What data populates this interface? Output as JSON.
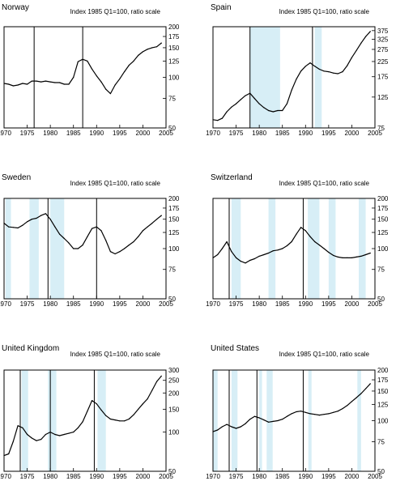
{
  "figure": {
    "shade_color": "#d7eef6",
    "line_color": "#000000"
  },
  "chart_data": [
    {
      "type": "line",
      "title": "Norway",
      "subtitle": "Index 1985 Q1=100, ratio scale",
      "x_ticks": [
        "1970",
        "1975",
        "1980",
        "1985",
        "1990",
        "1995",
        "2000",
        "2005"
      ],
      "xlim": [
        1970,
        2005
      ],
      "y_ticks": [
        50,
        75,
        100,
        125,
        150,
        175,
        200
      ],
      "y_tick_labels": [
        "50",
        "75",
        "100",
        "125",
        "150",
        "175",
        "200"
      ],
      "ylim": [
        50,
        200
      ],
      "y_scale": "log",
      "recessions": [],
      "peak_lines": [
        1976.5,
        1987
      ],
      "series": [
        {
          "x": [
            1970,
            1971,
            1972,
            1973,
            1974,
            1975,
            1976,
            1977,
            1978,
            1979,
            1980,
            1981,
            1982,
            1983,
            1984,
            1985,
            1986,
            1987,
            1988,
            1989,
            1990,
            1991,
            1992,
            1993,
            1994,
            1995,
            1996,
            1997,
            1998,
            1999,
            2000,
            2001,
            2002,
            2003,
            2004
          ],
          "y": [
            92,
            91,
            89,
            90,
            92,
            91,
            95,
            95,
            94,
            95,
            94,
            93,
            93,
            91,
            91,
            100,
            124,
            128,
            125,
            112,
            102,
            94,
            85,
            80,
            90,
            98,
            108,
            118,
            125,
            135,
            142,
            147,
            150,
            152,
            160
          ]
        }
      ]
    },
    {
      "type": "line",
      "title": "Spain",
      "subtitle": "Index 1985 Q1=100, ratio scale",
      "x_ticks": [
        "1970",
        "1975",
        "1980",
        "1985",
        "1990",
        "1995",
        "2000",
        "2005"
      ],
      "xlim": [
        1970,
        2005
      ],
      "y_ticks": [
        75,
        125,
        175,
        225,
        275,
        325,
        375
      ],
      "y_tick_labels": [
        "75",
        "125",
        "175",
        "225",
        "275",
        "325",
        "375"
      ],
      "ylim": [
        75,
        400
      ],
      "y_scale": "log",
      "recessions": [
        [
          1978,
          1984.5
        ],
        [
          1992,
          1993.5
        ]
      ],
      "peak_lines": [
        1978,
        1991.5
      ],
      "series": [
        {
          "x": [
            1970,
            1971,
            1972,
            1973,
            1974,
            1975,
            1976,
            1977,
            1978,
            1979,
            1980,
            1981,
            1982,
            1983,
            1984,
            1985,
            1986,
            1987,
            1988,
            1989,
            1990,
            1991,
            1992,
            1993,
            1994,
            1995,
            1996,
            1997,
            1998,
            1999,
            2000,
            2001,
            2002,
            2003,
            2004
          ],
          "y": [
            86,
            85,
            88,
            98,
            106,
            112,
            120,
            128,
            133,
            122,
            112,
            105,
            100,
            98,
            100,
            100,
            112,
            140,
            168,
            192,
            208,
            220,
            208,
            198,
            192,
            190,
            186,
            184,
            190,
            210,
            240,
            270,
            305,
            340,
            370
          ]
        }
      ]
    },
    {
      "type": "line",
      "title": "Sweden",
      "subtitle": "Index 1985 Q1=100, ratio scale",
      "x_ticks": [
        "1970",
        "1975",
        "1980",
        "1985",
        "1990",
        "1995",
        "2000",
        "2005"
      ],
      "xlim": [
        1970,
        2005
      ],
      "y_ticks": [
        50,
        75,
        100,
        125,
        150,
        175,
        200
      ],
      "y_tick_labels": [
        "50",
        "75",
        "100",
        "125",
        "150",
        "175",
        "200"
      ],
      "ylim": [
        50,
        200
      ],
      "y_scale": "log",
      "recessions": [
        [
          1970.3,
          1971.5
        ],
        [
          1975.5,
          1977.5
        ],
        [
          1980,
          1983
        ]
      ],
      "peak_lines": [
        1979.5,
        1990
      ],
      "series": [
        {
          "x": [
            1970,
            1971,
            1972,
            1973,
            1974,
            1975,
            1976,
            1977,
            1978,
            1979,
            1980,
            1981,
            1982,
            1983,
            1984,
            1985,
            1986,
            1987,
            1988,
            1989,
            1990,
            1991,
            1992,
            1993,
            1994,
            1995,
            1996,
            1997,
            1998,
            1999,
            2000,
            2001,
            2002,
            2003,
            2004
          ],
          "y": [
            142,
            135,
            134,
            133,
            138,
            145,
            150,
            152,
            158,
            162,
            150,
            135,
            122,
            115,
            108,
            100,
            100,
            105,
            118,
            132,
            135,
            128,
            112,
            96,
            93,
            96,
            100,
            105,
            110,
            118,
            128,
            135,
            142,
            150,
            158
          ]
        }
      ]
    },
    {
      "type": "line",
      "title": "Switzerland",
      "subtitle": "Index 1985 Q1=100, ratio scale",
      "x_ticks": [
        "1970",
        "1975",
        "1980",
        "1985",
        "1990",
        "1995",
        "2000",
        "2005"
      ],
      "xlim": [
        1970,
        2005
      ],
      "y_ticks": [
        50,
        75,
        100,
        125,
        150,
        175,
        200
      ],
      "y_tick_labels": [
        "50",
        "75",
        "100",
        "125",
        "150",
        "175",
        "200"
      ],
      "ylim": [
        50,
        200
      ],
      "y_scale": "log",
      "recessions": [
        [
          1974,
          1976
        ],
        [
          1982,
          1983.5
        ],
        [
          1990.5,
          1993
        ],
        [
          1995,
          1996.5
        ],
        [
          2001.5,
          2003
        ]
      ],
      "peak_lines": [
        1973.5,
        1989.5
      ],
      "series": [
        {
          "x": [
            1970,
            1971,
            1972,
            1973,
            1974,
            1975,
            1976,
            1977,
            1978,
            1979,
            1980,
            1981,
            1982,
            1983,
            1984,
            1985,
            1986,
            1987,
            1988,
            1989,
            1990,
            1991,
            1992,
            1993,
            1994,
            1995,
            1996,
            1997,
            1998,
            1999,
            2000,
            2001,
            2002,
            2003,
            2004
          ],
          "y": [
            88,
            92,
            100,
            110,
            96,
            88,
            84,
            82,
            85,
            87,
            90,
            92,
            94,
            97,
            98,
            100,
            104,
            110,
            122,
            134,
            128,
            118,
            110,
            105,
            100,
            95,
            91,
            89,
            88,
            88,
            88,
            89,
            90,
            92,
            94
          ]
        }
      ]
    },
    {
      "type": "line",
      "title": "United Kingdom",
      "subtitle": "Index 1985 Q1=100, ratio scale",
      "x_ticks": [
        "1970",
        "1975",
        "1980",
        "1985",
        "1990",
        "1995",
        "2000",
        "2005"
      ],
      "xlim": [
        1970,
        2005
      ],
      "y_ticks": [
        50,
        100,
        150,
        200,
        250,
        300
      ],
      "y_tick_labels": [
        "50",
        "100",
        "150",
        "200",
        "250",
        "300"
      ],
      "ylim": [
        50,
        300
      ],
      "y_scale": "log",
      "recessions": [
        [
          1973.8,
          1975.2
        ],
        [
          1979.5,
          1981.3
        ],
        [
          1990.2,
          1992
        ]
      ],
      "peak_lines": [
        1973.5,
        1980,
        1989.5
      ],
      "series": [
        {
          "x": [
            1970,
            1971,
            1972,
            1973,
            1974,
            1975,
            1976,
            1977,
            1978,
            1979,
            1980,
            1981,
            1982,
            1983,
            1984,
            1985,
            1986,
            1987,
            1988,
            1989,
            1990,
            1991,
            1992,
            1993,
            1994,
            1995,
            1996,
            1997,
            1998,
            1999,
            2000,
            2001,
            2002,
            2003,
            2004
          ],
          "y": [
            66,
            68,
            85,
            112,
            108,
            96,
            90,
            86,
            88,
            96,
            100,
            96,
            94,
            96,
            98,
            100,
            108,
            120,
            145,
            175,
            165,
            148,
            134,
            126,
            124,
            122,
            122,
            126,
            136,
            150,
            165,
            180,
            210,
            245,
            270
          ]
        }
      ]
    },
    {
      "type": "line",
      "title": "United States",
      "subtitle": "Index 1985 Q1=100, ratio scale",
      "x_ticks": [
        "1970",
        "1975",
        "1980",
        "1985",
        "1990",
        "1995",
        "2000",
        "2005"
      ],
      "xlim": [
        1970,
        2005
      ],
      "y_ticks": [
        50,
        75,
        100,
        125,
        150,
        175,
        200
      ],
      "y_tick_labels": [
        "50",
        "75",
        "100",
        "125",
        "150",
        "175",
        "200"
      ],
      "ylim": [
        50,
        200
      ],
      "y_scale": "log",
      "recessions": [
        [
          1970,
          1971
        ],
        [
          1974,
          1975.3
        ],
        [
          1980,
          1980.6
        ],
        [
          1981.6,
          1982.9
        ],
        [
          1990.6,
          1991.3
        ],
        [
          2001.2,
          2002
        ]
      ],
      "peak_lines": [
        1973.5,
        1979.5,
        1989.5
      ],
      "series": [
        {
          "x": [
            1970,
            1971,
            1972,
            1973,
            1974,
            1975,
            1976,
            1977,
            1978,
            1979,
            1980,
            1981,
            1982,
            1983,
            1984,
            1985,
            1986,
            1987,
            1988,
            1989,
            1990,
            1991,
            1992,
            1993,
            1994,
            1995,
            1996,
            1997,
            1998,
            1999,
            2000,
            2001,
            2002,
            2003,
            2004
          ],
          "y": [
            86,
            88,
            92,
            95,
            92,
            90,
            92,
            96,
            102,
            106,
            104,
            101,
            98,
            99,
            100,
            102,
            106,
            110,
            113,
            114,
            112,
            110,
            109,
            108,
            109,
            110,
            112,
            114,
            118,
            123,
            130,
            137,
            145,
            155,
            166
          ]
        }
      ]
    }
  ]
}
